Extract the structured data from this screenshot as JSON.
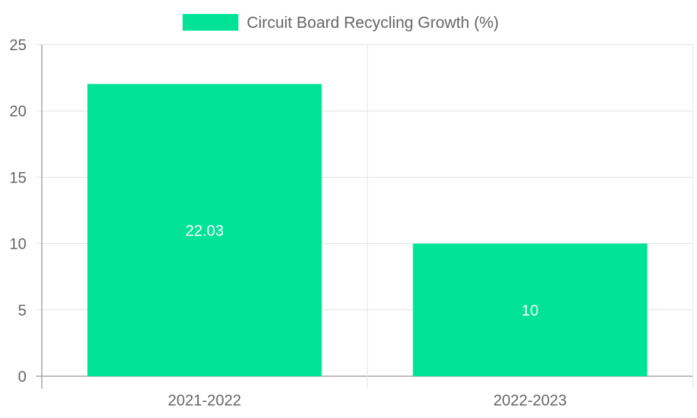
{
  "chart_data": {
    "type": "bar",
    "categories": [
      "2021-2022",
      "2022-2023"
    ],
    "series": [
      {
        "name": "Circuit Board Recycling Growth (%)",
        "values": [
          22.03,
          10
        ],
        "color": "#00e396"
      }
    ],
    "data_labels": [
      "22.03",
      "10"
    ],
    "ylim": [
      0,
      25
    ],
    "yticks": [
      0,
      5,
      10,
      15,
      20,
      25
    ],
    "grid": true,
    "legend_position": "top-center",
    "text_color": "#666666",
    "grid_color": "#e0e0e0",
    "axis_color": "#a0a0a0",
    "label_color": "#ffffff"
  }
}
